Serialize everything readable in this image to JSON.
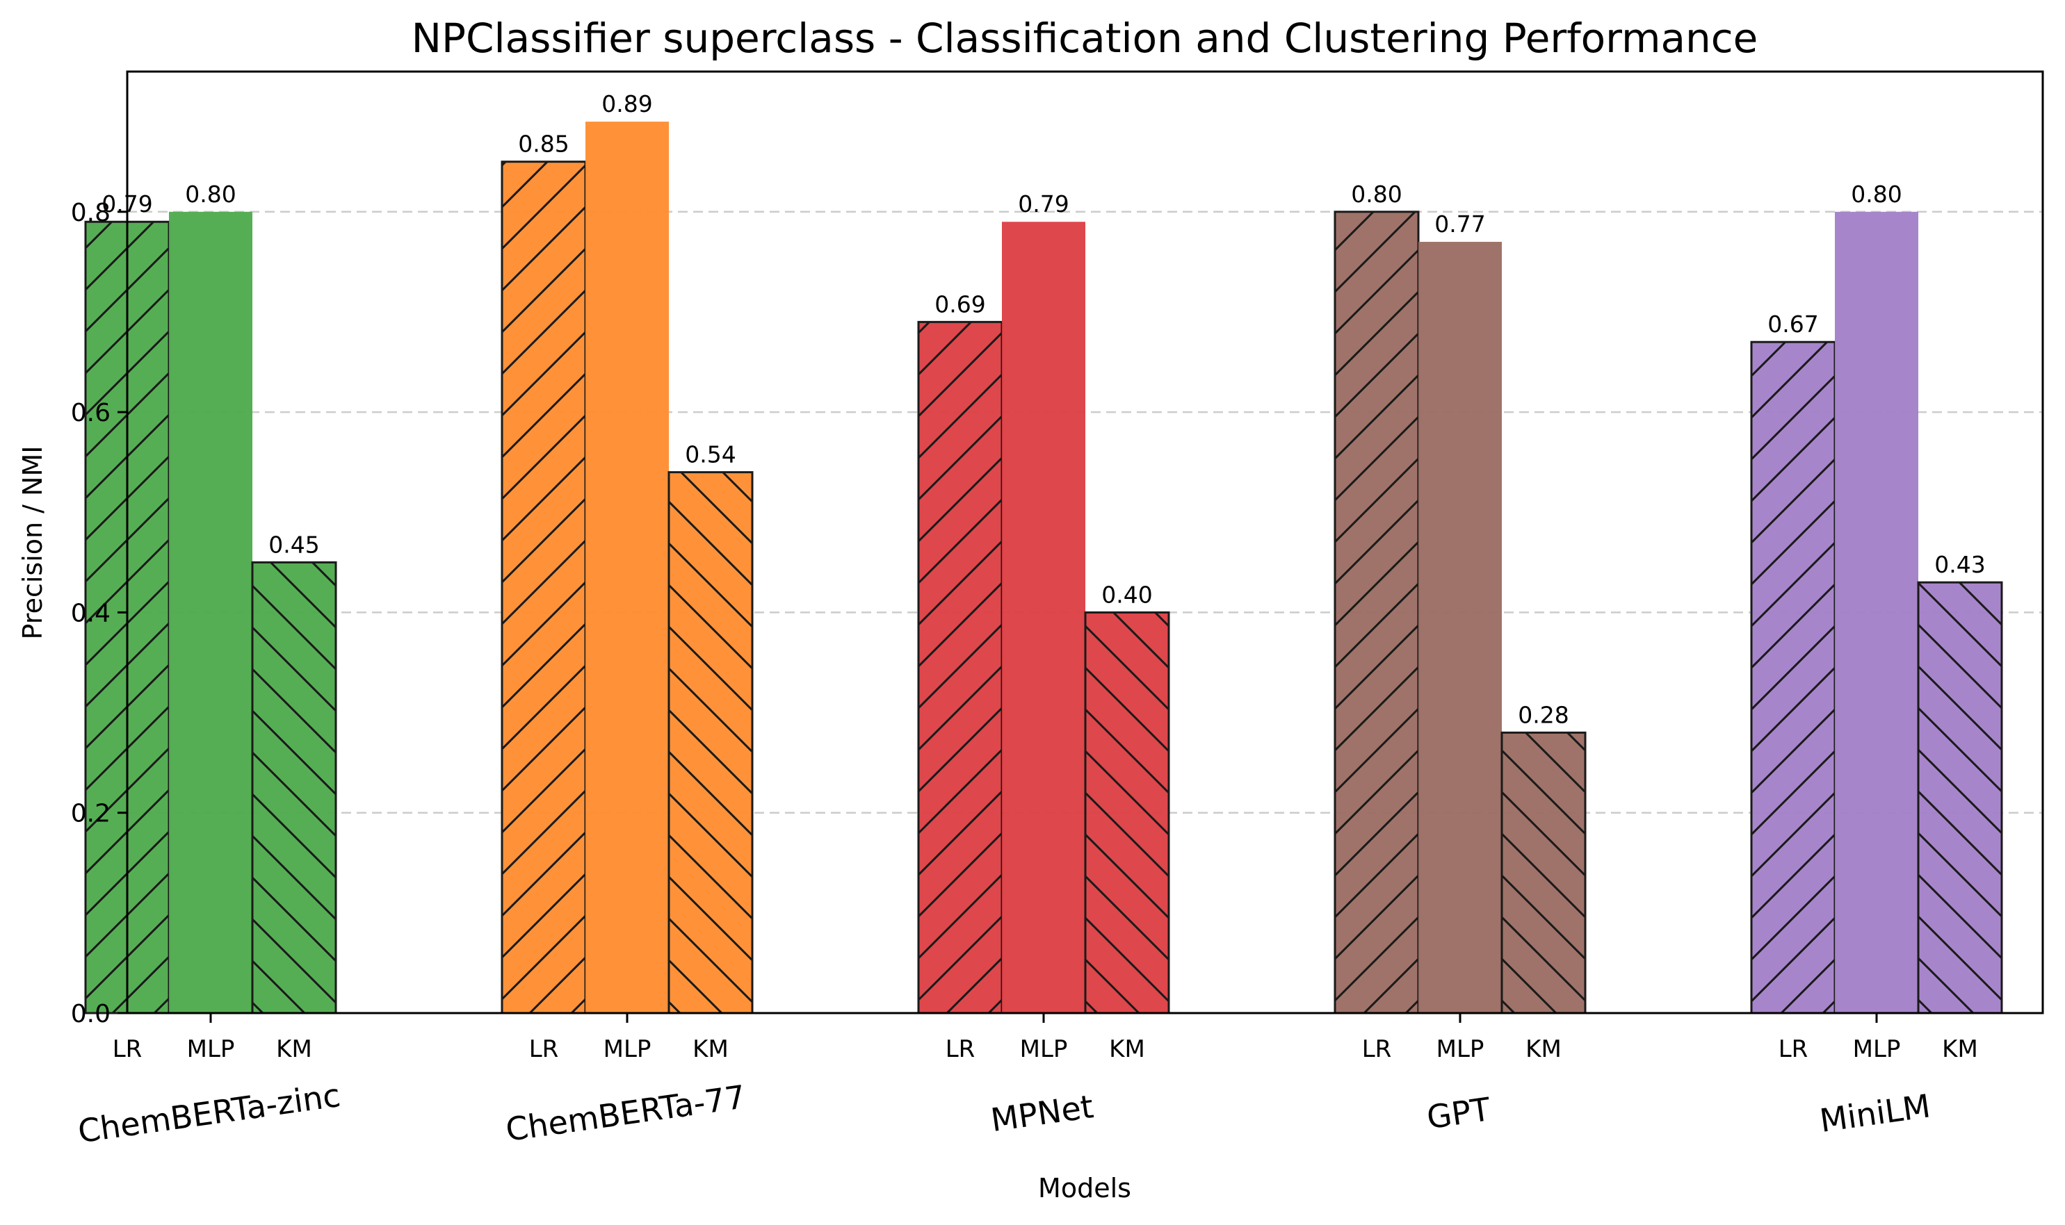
{
  "chart_data": {
    "type": "bar",
    "title": "NPClassifier superclass - Classification and Clustering Performance",
    "xlabel": "Models",
    "ylabel": "Precision / NMI",
    "ylim": [
      0,
      0.94
    ],
    "yticks": [
      "0.0",
      "0.2",
      "0.4",
      "0.6",
      "0.8"
    ],
    "grid": "y dashed",
    "categories": [
      "ChemBERTa-zinc",
      "ChemBERTa-77",
      "MPNet",
      "GPT",
      "MiniLM"
    ],
    "methods": [
      "LR",
      "MLP",
      "KM"
    ],
    "colors": [
      "#4daa4b",
      "#ff8c2e",
      "#dc3d41",
      "#9a6c61",
      "#a27ec8"
    ],
    "series": [
      {
        "name": "LR",
        "values": [
          0.79,
          0.85,
          0.69,
          0.8,
          0.67
        ]
      },
      {
        "name": "MLP",
        "values": [
          0.8,
          0.89,
          0.79,
          0.77,
          0.8
        ]
      },
      {
        "name": "KM",
        "values": [
          0.45,
          0.54,
          0.4,
          0.28,
          0.43
        ]
      }
    ],
    "labels": [
      [
        "0.79",
        "0.80",
        "0.45"
      ],
      [
        "0.85",
        "0.89",
        "0.54"
      ],
      [
        "0.69",
        "0.79",
        "0.40"
      ],
      [
        "0.80",
        "0.77",
        "0.28"
      ],
      [
        "0.67",
        "0.80",
        "0.43"
      ]
    ]
  }
}
